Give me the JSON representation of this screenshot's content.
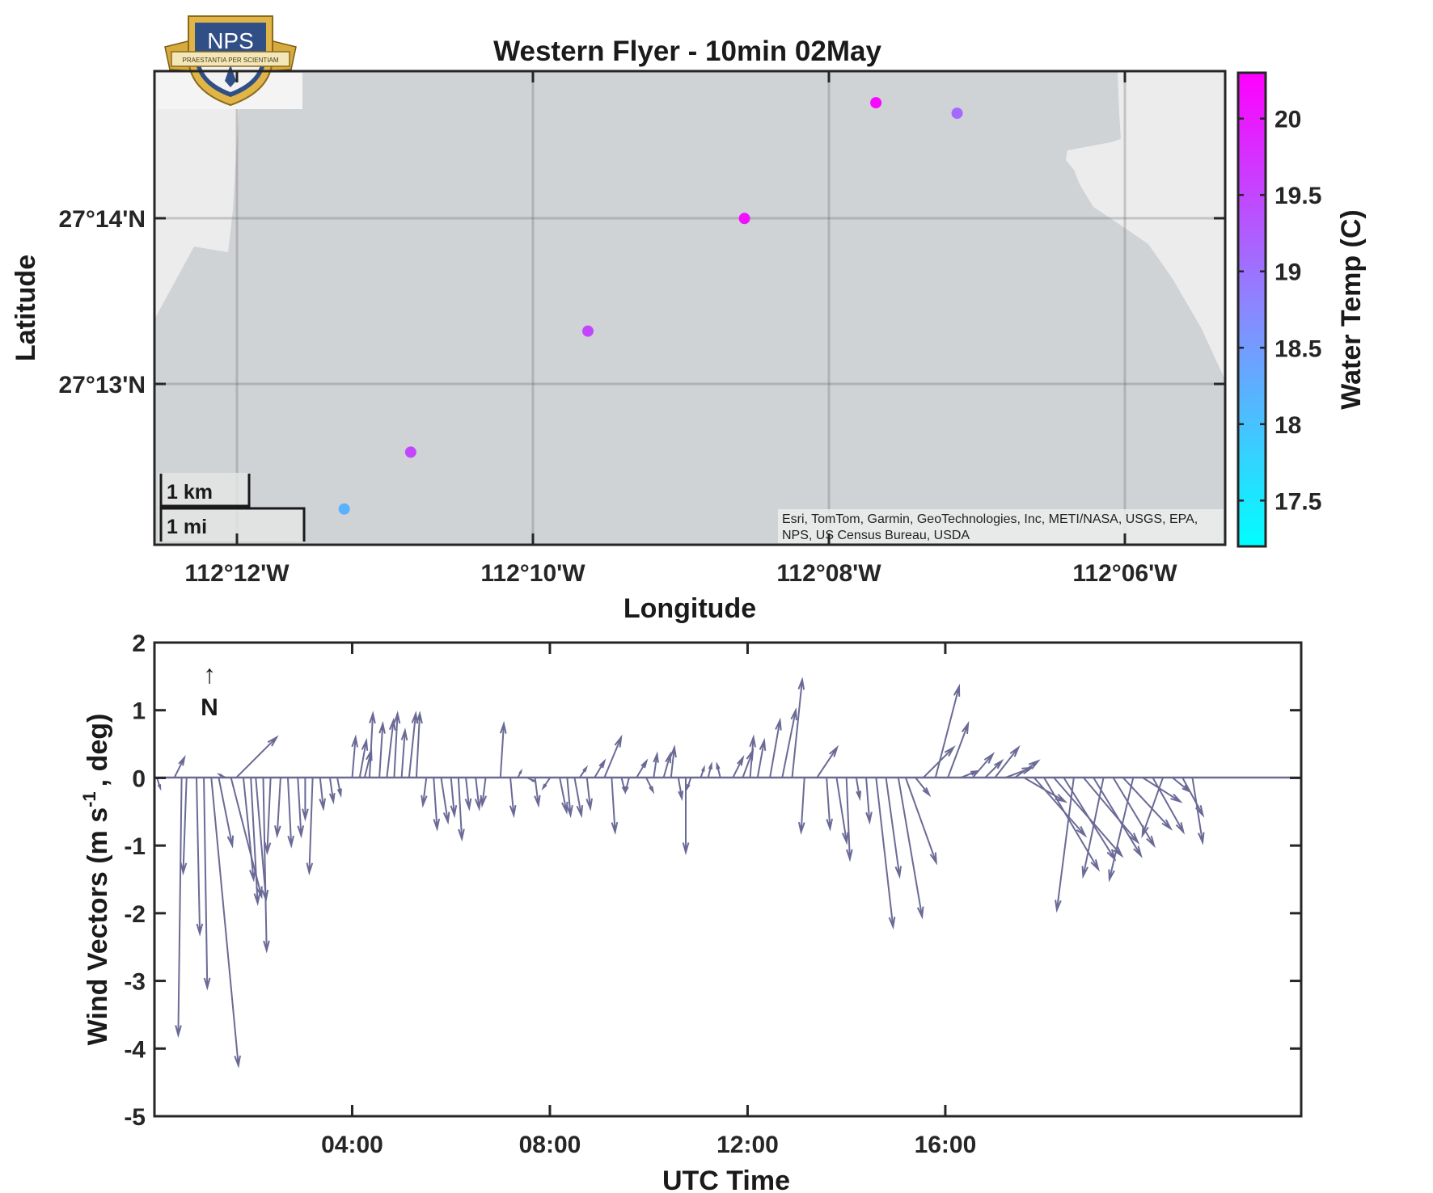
{
  "figure": {
    "logo": {
      "text": "NPS",
      "motto": "PRAESTANTIA PER SCIENTIAM"
    },
    "map": {
      "title": "Western Flyer - 10min 02May",
      "xlabel": "Longitude",
      "ylabel": "Latitude",
      "lon_ticks": [
        "112°12'W",
        "112°10'W",
        "112°08'W",
        "112°06'W"
      ],
      "lat_ticks": [
        "27°14'N",
        "27°13'N"
      ],
      "scalebar": {
        "km": "1 km",
        "mi": "1 mi"
      },
      "attribution_line1": "Esri, TomTom, Garmin, GeoTechnologies, Inc, METI/NASA, USGS, EPA,",
      "attribution_line2": "NPS, US Census Bureau, USDA",
      "colorbar": {
        "label": "Water Temp (C)",
        "ticks": [
          "20",
          "19.5",
          "19",
          "18.5",
          "18",
          "17.5"
        ],
        "range": [
          17.2,
          20.3
        ],
        "colors": [
          "#00ffff",
          "#ff00ff"
        ]
      }
    },
    "wind": {
      "ylabel_main": "Wind Vectors (m s",
      "ylabel_sup": "-1",
      "ylabel_end": ", deg)",
      "xlabel": "UTC Time",
      "x_ticks": [
        "04:00",
        "08:00",
        "12:00",
        "16:00"
      ],
      "y_ticks": [
        "2",
        "1",
        "0",
        "-1",
        "-2",
        "-3",
        "-4",
        "-5"
      ],
      "north_arrow": "↑",
      "north_label": "N"
    }
  },
  "chart_data": [
    {
      "type": "scatter",
      "title": "Western Flyer - 10min 02May",
      "xlabel": "Longitude",
      "ylabel": "Latitude",
      "x_unit": "degrees longitude (negative = W)",
      "y_unit": "degrees latitude (N)",
      "xlim": [
        -112.2167,
        -112.0717
      ],
      "ylim": [
        27.2033,
        27.2483
      ],
      "grid": true,
      "colorbar_label": "Water Temp (C)",
      "colorbar_range": [
        17.2,
        20.3
      ],
      "points": [
        {
          "lon": -112.191,
          "lat": 27.2067,
          "temp": 18.2
        },
        {
          "lon": -112.182,
          "lat": 27.2121,
          "temp": 19.5
        },
        {
          "lon": -112.158,
          "lat": 27.2236,
          "temp": 19.5
        },
        {
          "lon": -112.1368,
          "lat": 27.2343,
          "temp": 20.1
        },
        {
          "lon": -112.119,
          "lat": 27.2453,
          "temp": 20.2
        },
        {
          "lon": -112.108,
          "lat": 27.2443,
          "temp": 19.1
        }
      ]
    },
    {
      "type": "line",
      "title": "",
      "xlabel": "UTC Time",
      "ylabel": "Wind Vectors (m s-1 , deg)",
      "x_unit": "UTC hours on 02 May",
      "xlim": [
        0,
        23.2
      ],
      "ylim": [
        -5,
        2
      ],
      "x_tick_values": [
        4,
        8,
        12,
        16
      ],
      "y_tick_values": [
        2,
        1,
        0,
        -1,
        -2,
        -3,
        -4,
        -5
      ],
      "series_color": "#6a6a96",
      "vectors": [
        {
          "t": 0.05,
          "u": 0.05,
          "v": -0.15
        },
        {
          "t": 0.4,
          "u": 0.15,
          "v": 0.3
        },
        {
          "t": 0.55,
          "u": -0.05,
          "v": -3.8
        },
        {
          "t": 0.65,
          "u": -0.05,
          "v": -1.4
        },
        {
          "t": 0.85,
          "u": 0.05,
          "v": -2.3
        },
        {
          "t": 1.0,
          "u": 0.05,
          "v": -3.1
        },
        {
          "t": 1.15,
          "u": 0.4,
          "v": -4.25
        },
        {
          "t": 1.3,
          "u": 0.2,
          "v": -1.0
        },
        {
          "t": 1.45,
          "u": -0.1,
          "v": 0.05
        },
        {
          "t": 1.55,
          "u": 0.45,
          "v": -1.75
        },
        {
          "t": 1.65,
          "u": 0.6,
          "v": 0.6
        },
        {
          "t": 1.8,
          "u": 0.15,
          "v": -1.5
        },
        {
          "t": 1.95,
          "u": 0.1,
          "v": -1.85
        },
        {
          "t": 2.05,
          "u": 0.15,
          "v": -1.8
        },
        {
          "t": 2.2,
          "u": 0.05,
          "v": -2.55
        },
        {
          "t": 2.35,
          "u": -0.05,
          "v": -1.1
        },
        {
          "t": 2.55,
          "u": -0.05,
          "v": -0.85
        },
        {
          "t": 2.7,
          "u": 0.05,
          "v": -1.0
        },
        {
          "t": 2.9,
          "u": 0.05,
          "v": -0.85
        },
        {
          "t": 3.05,
          "u": 0.0,
          "v": -0.6
        },
        {
          "t": 3.2,
          "u": -0.05,
          "v": -1.4
        },
        {
          "t": 3.35,
          "u": 0.05,
          "v": -0.45
        },
        {
          "t": 3.55,
          "u": 0.05,
          "v": -0.35
        },
        {
          "t": 3.7,
          "u": 0.05,
          "v": -0.25
        },
        {
          "t": 4.0,
          "u": 0.05,
          "v": 0.6
        },
        {
          "t": 4.15,
          "u": 0.1,
          "v": 0.55
        },
        {
          "t": 4.25,
          "u": 0.1,
          "v": 0.4
        },
        {
          "t": 4.35,
          "u": 0.05,
          "v": 0.95
        },
        {
          "t": 4.55,
          "u": 0.05,
          "v": 0.8
        },
        {
          "t": 4.7,
          "u": 0.1,
          "v": 0.85
        },
        {
          "t": 4.85,
          "u": 0.05,
          "v": 0.95
        },
        {
          "t": 5.0,
          "u": 0.05,
          "v": 0.7
        },
        {
          "t": 5.15,
          "u": 0.1,
          "v": 0.95
        },
        {
          "t": 5.3,
          "u": 0.05,
          "v": 0.95
        },
        {
          "t": 5.5,
          "u": -0.05,
          "v": -0.4
        },
        {
          "t": 5.65,
          "u": 0.05,
          "v": -0.75
        },
        {
          "t": 5.8,
          "u": 0.1,
          "v": -0.65
        },
        {
          "t": 6.0,
          "u": 0.05,
          "v": -0.55
        },
        {
          "t": 6.15,
          "u": 0.05,
          "v": -0.9
        },
        {
          "t": 6.3,
          "u": 0.05,
          "v": -0.45
        },
        {
          "t": 6.5,
          "u": 0.05,
          "v": -0.45
        },
        {
          "t": 6.7,
          "u": -0.05,
          "v": -0.4
        },
        {
          "t": 7.0,
          "u": 0.05,
          "v": 0.8
        },
        {
          "t": 7.2,
          "u": 0.05,
          "v": -0.55
        },
        {
          "t": 7.35,
          "u": 0.05,
          "v": 0.1
        },
        {
          "t": 7.55,
          "u": 0.1,
          "v": -0.05
        },
        {
          "t": 7.7,
          "u": 0.05,
          "v": -0.4
        },
        {
          "t": 8.0,
          "u": -0.1,
          "v": -0.15
        },
        {
          "t": 8.2,
          "u": 0.1,
          "v": -0.5
        },
        {
          "t": 8.35,
          "u": 0.05,
          "v": -0.55
        },
        {
          "t": 8.5,
          "u": 0.1,
          "v": -0.55
        },
        {
          "t": 8.6,
          "u": 0.1,
          "v": 0.15
        },
        {
          "t": 8.75,
          "u": 0.05,
          "v": -0.45
        },
        {
          "t": 8.9,
          "u": 0.15,
          "v": 0.25
        },
        {
          "t": 9.1,
          "u": 0.25,
          "v": 0.6
        },
        {
          "t": 9.25,
          "u": 0.05,
          "v": -0.8
        },
        {
          "t": 9.45,
          "u": 0.05,
          "v": -0.2
        },
        {
          "t": 9.6,
          "u": -0.05,
          "v": -0.2
        },
        {
          "t": 9.75,
          "u": 0.15,
          "v": 0.25
        },
        {
          "t": 9.95,
          "u": 0.1,
          "v": -0.2
        },
        {
          "t": 10.1,
          "u": 0.05,
          "v": 0.35
        },
        {
          "t": 10.3,
          "u": 0.1,
          "v": 0.35
        },
        {
          "t": 10.45,
          "u": 0.05,
          "v": 0.45
        },
        {
          "t": 10.6,
          "u": 0.05,
          "v": -0.3
        },
        {
          "t": 10.75,
          "u": 0.0,
          "v": -1.1
        },
        {
          "t": 10.85,
          "u": -0.05,
          "v": -0.15
        },
        {
          "t": 11.05,
          "u": 0.05,
          "v": 0.15
        },
        {
          "t": 11.2,
          "u": 0.05,
          "v": 0.2
        },
        {
          "t": 11.45,
          "u": -0.05,
          "v": 0.2
        },
        {
          "t": 11.7,
          "u": 0.15,
          "v": 0.3
        },
        {
          "t": 11.9,
          "u": 0.15,
          "v": 0.4
        },
        {
          "t": 12.05,
          "u": 0.05,
          "v": 0.6
        },
        {
          "t": 12.2,
          "u": 0.1,
          "v": 0.55
        },
        {
          "t": 12.45,
          "u": 0.15,
          "v": 0.85
        },
        {
          "t": 12.7,
          "u": 0.2,
          "v": 1.0
        },
        {
          "t": 12.9,
          "u": 0.15,
          "v": 1.45
        },
        {
          "t": 13.15,
          "u": -0.05,
          "v": -0.8
        },
        {
          "t": 13.4,
          "u": 0.3,
          "v": 0.45
        },
        {
          "t": 13.6,
          "u": 0.05,
          "v": -0.75
        },
        {
          "t": 13.8,
          "u": 0.15,
          "v": -0.95
        },
        {
          "t": 14.0,
          "u": 0.05,
          "v": -1.2
        },
        {
          "t": 14.2,
          "u": 0.05,
          "v": -0.3
        },
        {
          "t": 14.4,
          "u": 0.05,
          "v": -0.65
        },
        {
          "t": 14.6,
          "u": 0.25,
          "v": -2.2
        },
        {
          "t": 14.8,
          "u": 0.2,
          "v": -1.45
        },
        {
          "t": 15.05,
          "u": 0.35,
          "v": -2.05
        },
        {
          "t": 15.2,
          "u": 0.45,
          "v": -1.25
        },
        {
          "t": 15.4,
          "u": 0.2,
          "v": -0.25
        },
        {
          "t": 15.55,
          "u": 0.45,
          "v": 0.45
        },
        {
          "t": 15.8,
          "u": 0.35,
          "v": 1.35
        },
        {
          "t": 16.05,
          "u": 0.3,
          "v": 0.8
        },
        {
          "t": 16.3,
          "u": 0.25,
          "v": 0.1
        },
        {
          "t": 16.55,
          "u": 0.3,
          "v": 0.35
        },
        {
          "t": 16.8,
          "u": 0.25,
          "v": 0.25
        },
        {
          "t": 17.0,
          "u": 0.35,
          "v": 0.45
        },
        {
          "t": 17.2,
          "u": 0.4,
          "v": 0.15
        },
        {
          "t": 17.4,
          "u": 0.35,
          "v": 0.25
        },
        {
          "t": 17.6,
          "u": 0.6,
          "v": -0.35
        },
        {
          "t": 17.8,
          "u": 0.75,
          "v": -0.85
        },
        {
          "t": 18.0,
          "u": 0.8,
          "v": -1.35
        },
        {
          "t": 18.2,
          "u": 1.0,
          "v": -1.15
        },
        {
          "t": 18.4,
          "u": 0.75,
          "v": -1.2
        },
        {
          "t": 18.6,
          "u": -0.25,
          "v": -1.95
        },
        {
          "t": 18.8,
          "u": 0.8,
          "v": -0.95
        },
        {
          "t": 19.0,
          "u": 0.7,
          "v": -1.15
        },
        {
          "t": 19.2,
          "u": -0.3,
          "v": -1.45
        },
        {
          "t": 19.4,
          "u": 0.6,
          "v": -1.0
        },
        {
          "t": 19.6,
          "u": 0.7,
          "v": -0.75
        },
        {
          "t": 19.8,
          "u": -0.35,
          "v": -1.5
        },
        {
          "t": 20.0,
          "u": 0.55,
          "v": -0.35
        },
        {
          "t": 20.2,
          "u": 0.45,
          "v": -0.8
        },
        {
          "t": 20.4,
          "u": -0.3,
          "v": -0.85
        },
        {
          "t": 20.6,
          "u": 0.25,
          "v": -0.2
        },
        {
          "t": 20.8,
          "u": 0.3,
          "v": -0.55
        },
        {
          "t": 21.0,
          "u": 0.15,
          "v": -0.95
        }
      ]
    }
  ]
}
